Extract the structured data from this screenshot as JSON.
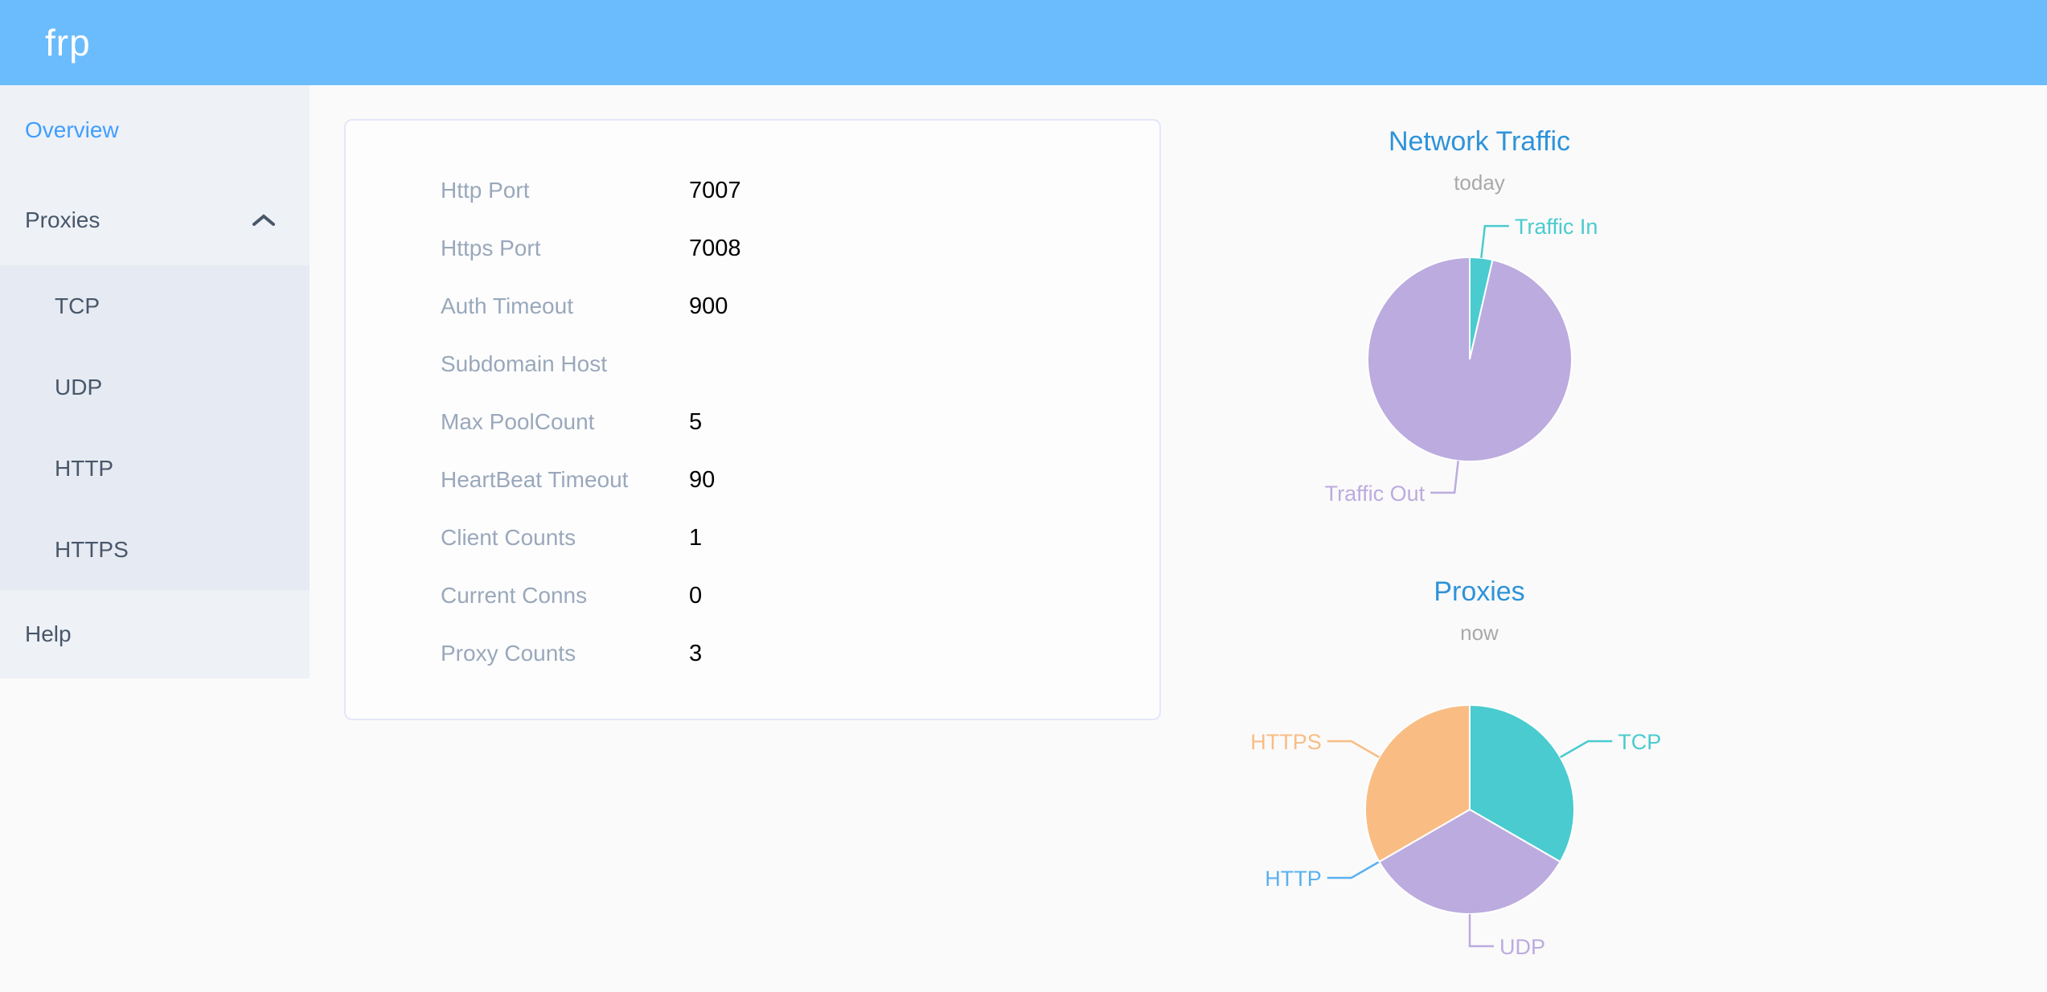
{
  "header": {
    "logo_text": "frp"
  },
  "sidebar": {
    "items": [
      {
        "label": "Overview",
        "active": true
      },
      {
        "label": "Proxies",
        "expanded": true
      },
      {
        "label": "TCP"
      },
      {
        "label": "UDP"
      },
      {
        "label": "HTTP"
      },
      {
        "label": "HTTPS"
      },
      {
        "label": "Help"
      }
    ]
  },
  "config_card": {
    "rows": [
      {
        "label": "Http Port",
        "value": "7007"
      },
      {
        "label": "Https Port",
        "value": "7008"
      },
      {
        "label": "Auth Timeout",
        "value": "900"
      },
      {
        "label": "Subdomain Host",
        "value": ""
      },
      {
        "label": "Max PoolCount",
        "value": "5"
      },
      {
        "label": "HeartBeat Timeout",
        "value": "90"
      },
      {
        "label": "Client Counts",
        "value": "1"
      },
      {
        "label": "Current Conns",
        "value": "0"
      },
      {
        "label": "Proxy Counts",
        "value": "3"
      }
    ]
  },
  "chart_data": [
    {
      "type": "pie",
      "title": "Network Traffic",
      "subtitle": "today",
      "legend_position": "none",
      "labels": "leader-lines",
      "slices": [
        {
          "label": "Traffic In",
          "value": 3.6,
          "color": "#4acbcf",
          "label_side": "right"
        },
        {
          "label": "Traffic Out",
          "value": 96.4,
          "color": "#bcabdf",
          "label_side": "left"
        }
      ]
    },
    {
      "type": "pie",
      "title": "Proxies",
      "subtitle": "now",
      "legend_position": "none",
      "labels": "leader-lines",
      "slices": [
        {
          "label": "TCP",
          "value": 1,
          "color": "#4acbcf",
          "label_side": "right"
        },
        {
          "label": "UDP",
          "value": 1,
          "color": "#bcabdf",
          "label_side": "right"
        },
        {
          "label": "HTTP",
          "value": 0,
          "color": "#5ab1ef",
          "label_side": "left"
        },
        {
          "label": "HTTPS",
          "value": 1,
          "color": "#f9bd84",
          "label_side": "left"
        }
      ]
    }
  ],
  "colors": {
    "header_bg": "#6bbcfc",
    "sidebar_bg": "#eef1f6",
    "submenu_bg": "#e6eaf2",
    "menu_text": "#48576a",
    "active_link": "#409eff",
    "chart_title_blue": "#2e93d9",
    "subtitle_gray": "#a9a9a9",
    "config_label_gray": "#9aa8bb",
    "teal": "#4acbcf",
    "purple": "#bcabdf",
    "blue": "#5ab1ef",
    "orange": "#f9bd84"
  }
}
